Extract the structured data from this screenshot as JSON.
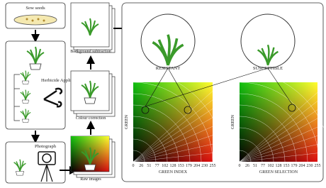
{
  "steps": {
    "sow": "Sow seeds",
    "herbicide": "Herbicide Application",
    "photograph": "Photograph",
    "raw": "Raw images",
    "background": "Background subtraction",
    "colour": "Colour correction"
  },
  "results": {
    "resistant": "RESISTANT",
    "susceptible": "SUSCEPTIBLE"
  },
  "plots": [
    {
      "xlabel": "GREEN INDEX",
      "ylabel": "GREEN"
    },
    {
      "xlabel": "GREEN SELECTION",
      "ylabel": "GREEN"
    }
  ],
  "ticks": [
    "0",
    "26",
    "51",
    "77",
    "102",
    "128",
    "153",
    "179",
    "204",
    "230",
    "255"
  ]
}
